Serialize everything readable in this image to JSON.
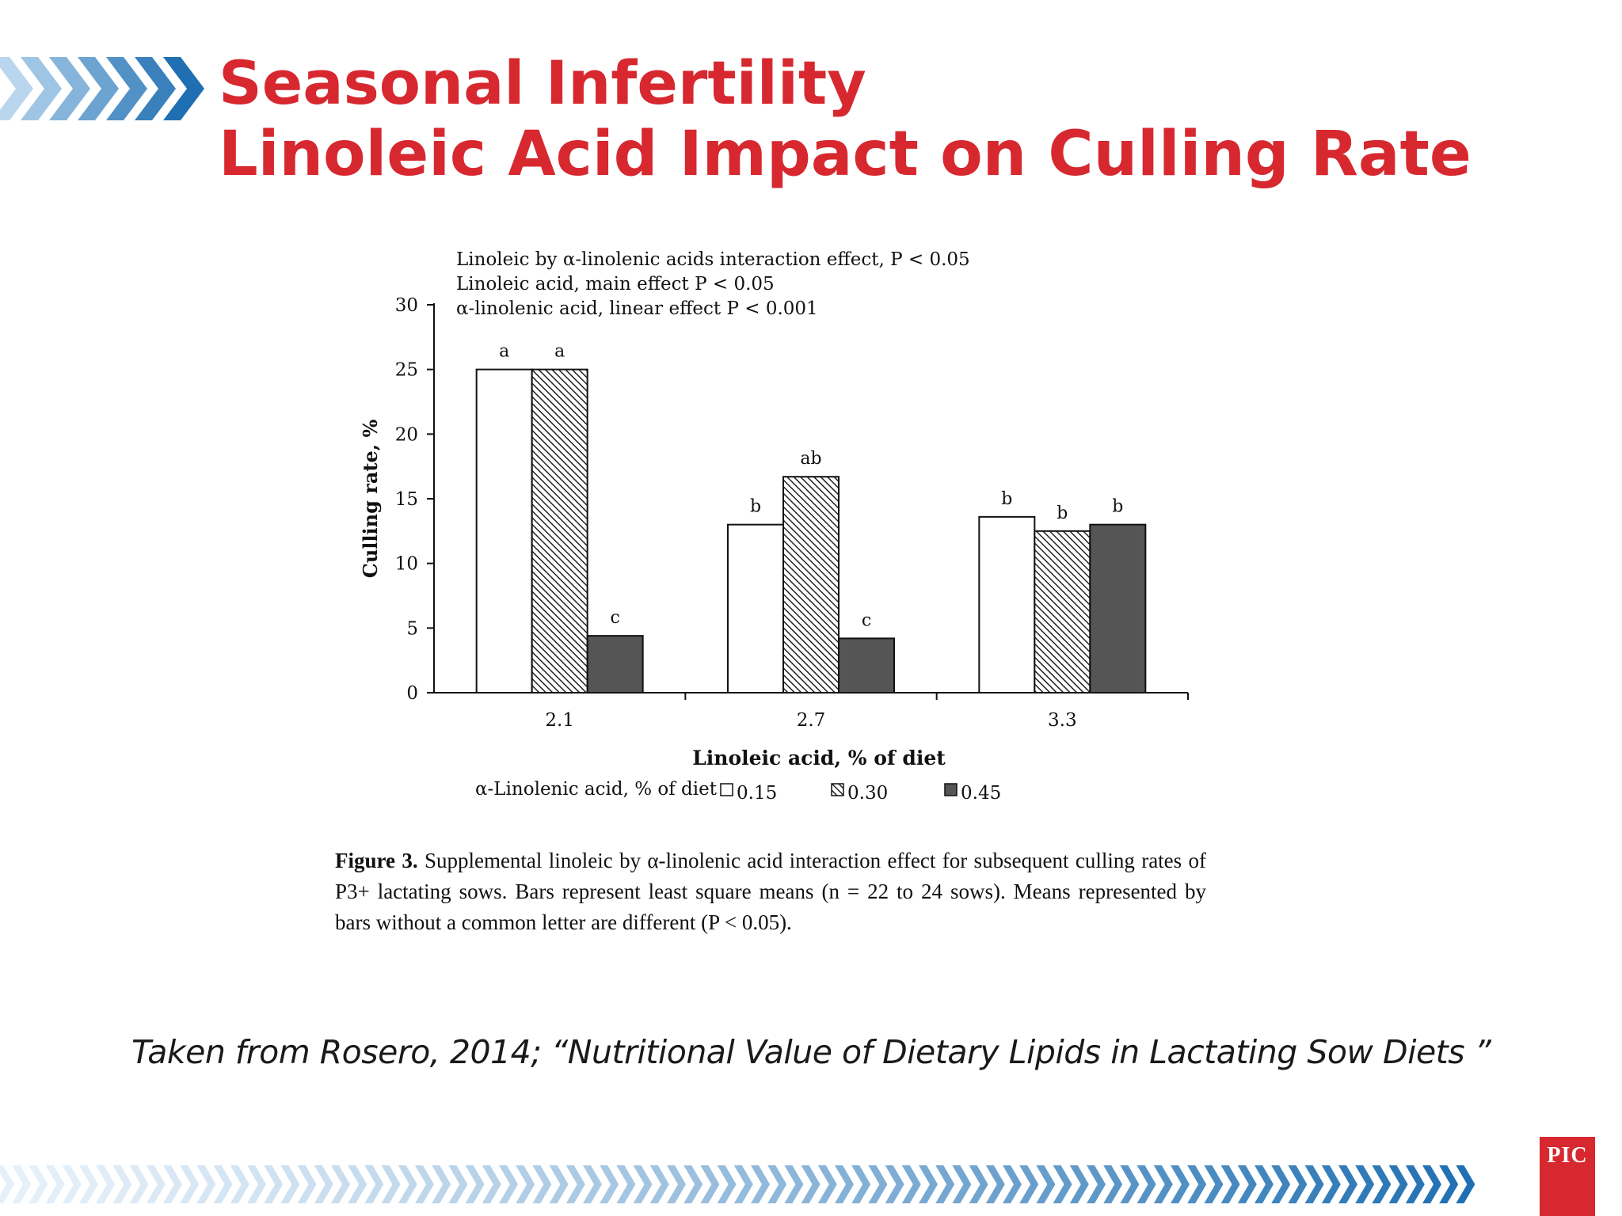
{
  "slide": {
    "title_line1": "Seasonal Infertility",
    "title_line2": "Linoleic Acid Impact on Culling Rate",
    "caption_label": "Figure 3.",
    "caption_text": "Supplemental linoleic by α-linolenic acid interaction effect for subsequent culling rates of P3+ lactating sows. Bars represent least square means (n = 22 to 24 sows). Means represented by bars without a common letter are different (P < 0.05).",
    "citation": "Taken from Rosero, 2014; “Nutritional Value of Dietary Lipids in Lactating Sow Diets ”",
    "logo_text": "PIC",
    "colors": {
      "title": "#d7282f",
      "chevron_dark": "#1f6fb2",
      "chevron_light": "#b9d6ee",
      "logo": "#d7282f"
    }
  },
  "chart_data": {
    "type": "bar",
    "annotations": [
      "Linoleic by α-linolenic acids interaction effect, P < 0.05",
      "Linoleic acid, main effect P < 0.05",
      "α-linolenic acid, linear effect P < 0.001"
    ],
    "xlabel": "Linoleic acid, % of diet",
    "ylabel": "Culling rate, %",
    "legend_title": "α-Linolenic acid, % of diet",
    "legend_placement": "bottom",
    "categories": [
      "2.1",
      "2.7",
      "3.3"
    ],
    "ylim": [
      0,
      30
    ],
    "yticks": [
      0,
      5,
      10,
      15,
      20,
      25,
      30
    ],
    "grid": false,
    "series": [
      {
        "name": "0.15",
        "fill": "white",
        "values": [
          25,
          13,
          13.6
        ],
        "letters": [
          "a",
          "b",
          "b"
        ]
      },
      {
        "name": "0.30",
        "fill": "hatched",
        "values": [
          25,
          16.7,
          12.5
        ],
        "letters": [
          "a",
          "ab",
          "b"
        ]
      },
      {
        "name": "0.45",
        "fill": "#555555",
        "values": [
          4.4,
          4.2,
          13
        ],
        "letters": [
          "c",
          "c",
          "b"
        ]
      }
    ]
  }
}
